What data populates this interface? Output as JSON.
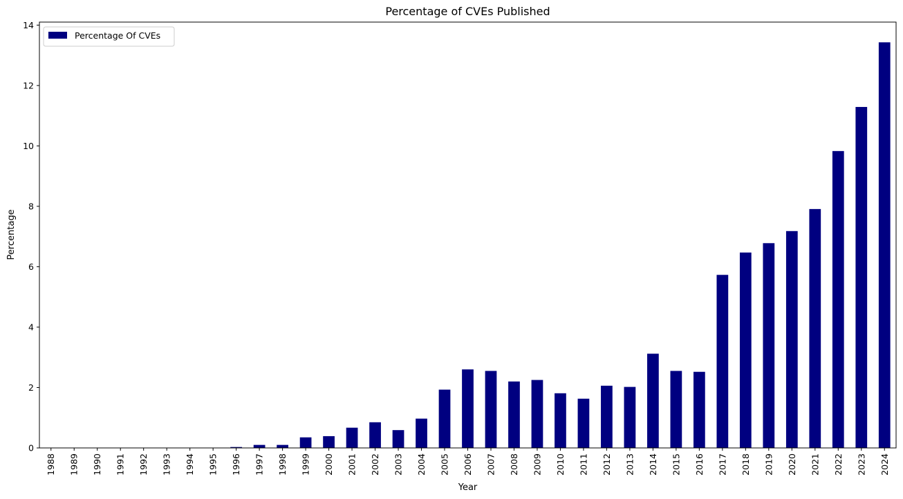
{
  "chart_data": {
    "type": "bar",
    "title": "Percentage of CVEs Published",
    "xlabel": "Year",
    "ylabel": "Percentage",
    "categories": [
      "1988",
      "1989",
      "1990",
      "1991",
      "1992",
      "1993",
      "1994",
      "1995",
      "1996",
      "1997",
      "1998",
      "1999",
      "2000",
      "2001",
      "2002",
      "2003",
      "2004",
      "2005",
      "2006",
      "2007",
      "2008",
      "2009",
      "2010",
      "2011",
      "2012",
      "2013",
      "2014",
      "2015",
      "2016",
      "2017",
      "2018",
      "2019",
      "2020",
      "2021",
      "2022",
      "2023",
      "2024"
    ],
    "series": [
      {
        "name": "Percentage Of CVEs",
        "color": "#000080",
        "values": [
          0.002,
          0.002,
          0.003,
          0.004,
          0.006,
          0.005,
          0.006,
          0.008,
          0.03,
          0.1,
          0.1,
          0.35,
          0.39,
          0.67,
          0.85,
          0.59,
          0.97,
          1.93,
          2.6,
          2.55,
          2.2,
          2.25,
          1.81,
          1.63,
          2.06,
          2.02,
          3.12,
          2.55,
          2.52,
          5.73,
          6.47,
          6.78,
          7.18,
          7.91,
          9.83,
          11.29,
          13.43
        ]
      }
    ],
    "ylim": [
      0,
      14.1
    ],
    "yticks": [
      0,
      2,
      4,
      6,
      8,
      10,
      12,
      14
    ],
    "grid": false,
    "legend_position": "upper-left"
  }
}
